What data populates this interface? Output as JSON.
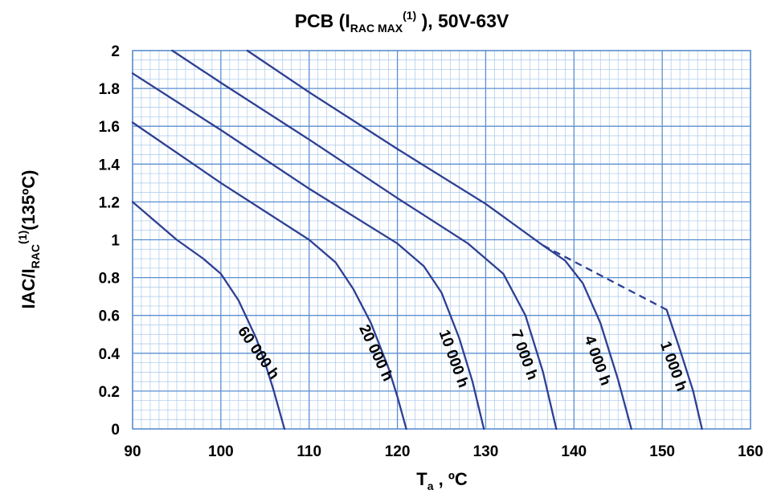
{
  "chart_data": {
    "type": "line",
    "title": {
      "main": "PCB (I",
      "sub": "RAC MAX",
      "sup": "(1)",
      "tail": " ), 50V-63V"
    },
    "xlabel": {
      "main": "T",
      "sub": "a",
      "tail": " , ºC"
    },
    "ylabel": {
      "main": "IAC/I",
      "sub": "RAC",
      "sup": "(1)",
      "tail": "(135ºC)"
    },
    "xlim": [
      90,
      160
    ],
    "ylim": [
      0,
      2
    ],
    "x_ticks": [
      "90",
      "100",
      "110",
      "120",
      "130",
      "140",
      "150",
      "160"
    ],
    "y_ticks": [
      "0",
      "0.2",
      "0.4",
      "0.6",
      "0.8",
      "1",
      "1.2",
      "1.4",
      "1.6",
      "1.8",
      "2"
    ],
    "grid": {
      "major": true,
      "minor": true
    },
    "colors": {
      "curve": "#2e3f91",
      "major_grid": "#5b8fd0",
      "minor_grid": "#a9c8ea",
      "plot_background": "#ffffff"
    },
    "series": [
      {
        "name": "60 000 h",
        "label": "60 000 h",
        "points": [
          [
            90,
            1.2
          ],
          [
            95,
            1.0
          ],
          [
            98,
            0.9
          ],
          [
            100,
            0.82
          ],
          [
            102,
            0.68
          ],
          [
            104,
            0.48
          ],
          [
            105,
            0.35
          ],
          [
            106,
            0.2
          ],
          [
            107.2,
            0
          ]
        ]
      },
      {
        "name": "20 000 h",
        "label": "20 000 h",
        "points": [
          [
            90,
            1.62
          ],
          [
            100,
            1.3
          ],
          [
            110,
            1.0
          ],
          [
            113,
            0.88
          ],
          [
            115,
            0.74
          ],
          [
            117,
            0.56
          ],
          [
            119,
            0.32
          ],
          [
            120,
            0.17
          ],
          [
            121,
            0
          ]
        ]
      },
      {
        "name": "10 000 h",
        "label": "10 000 h",
        "points": [
          [
            90,
            1.88
          ],
          [
            100,
            1.58
          ],
          [
            110,
            1.27
          ],
          [
            120,
            0.98
          ],
          [
            123,
            0.86
          ],
          [
            125,
            0.72
          ],
          [
            127,
            0.48
          ],
          [
            128.5,
            0.25
          ],
          [
            129.8,
            0
          ]
        ]
      },
      {
        "name": "7 000 h",
        "label": "7 000 h",
        "points": [
          [
            94.5,
            2.0
          ],
          [
            100,
            1.83
          ],
          [
            110,
            1.53
          ],
          [
            120,
            1.22
          ],
          [
            128,
            0.98
          ],
          [
            132,
            0.82
          ],
          [
            134.5,
            0.6
          ],
          [
            136.5,
            0.3
          ],
          [
            138,
            0
          ]
        ]
      },
      {
        "name": "4 000 h",
        "label": "4 000 h",
        "points": [
          [
            103,
            2.0
          ],
          [
            110,
            1.78
          ],
          [
            120,
            1.48
          ],
          [
            130,
            1.19
          ],
          [
            136.5,
            0.97
          ],
          [
            139,
            0.89
          ],
          [
            141,
            0.77
          ],
          [
            143,
            0.56
          ],
          [
            145,
            0.26
          ],
          [
            146.5,
            0
          ]
        ]
      },
      {
        "name": "1 000 h",
        "label": "1 000 h",
        "points": [
          [
            150.5,
            0.63
          ],
          [
            152,
            0.42
          ],
          [
            153.5,
            0.2
          ],
          [
            154.5,
            0
          ]
        ]
      }
    ],
    "dashed_segment": {
      "points": [
        [
          136.5,
          0.97
        ],
        [
          150.5,
          0.63
        ]
      ]
    },
    "curve_labels": [
      {
        "text": "60 000 h",
        "x": 104.2,
        "y": 0.4,
        "angle": 55
      },
      {
        "text": "20 000 h",
        "x": 117.5,
        "y": 0.4,
        "angle": 65
      },
      {
        "text": "10 000 h",
        "x": 126.3,
        "y": 0.37,
        "angle": 70
      },
      {
        "text": "7 000 h",
        "x": 134.3,
        "y": 0.39,
        "angle": 70
      },
      {
        "text": "4 000 h",
        "x": 142.6,
        "y": 0.36,
        "angle": 70
      },
      {
        "text": "1 000 h",
        "x": 151.2,
        "y": 0.33,
        "angle": 70
      }
    ]
  }
}
